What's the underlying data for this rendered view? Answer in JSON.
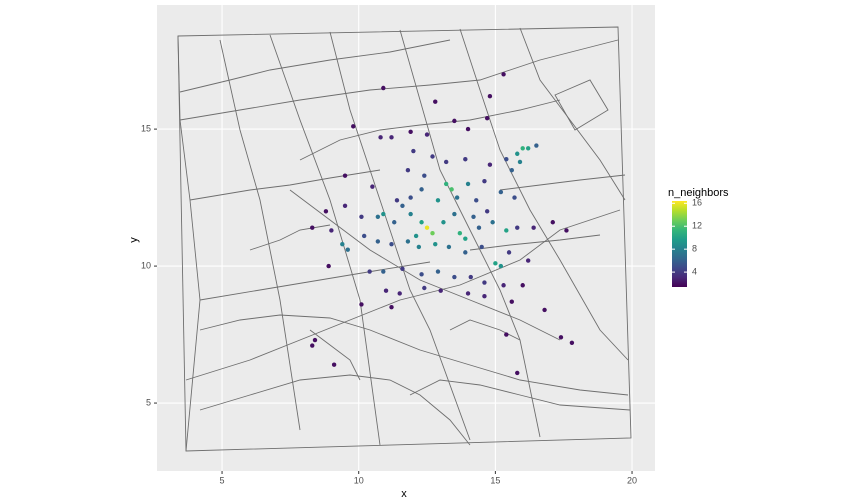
{
  "chart_data": {
    "type": "scatter",
    "x_label": "x",
    "y_label": "y",
    "xlim": [
      2.62,
      20.84
    ],
    "ylim": [
      2.52,
      19.53
    ],
    "xticks": [
      5,
      10,
      15,
      20
    ],
    "yticks": [
      5,
      10,
      15
    ],
    "grid": true,
    "legend_title": "n_neighbors",
    "colorlim": [
      1.4,
      16.4
    ],
    "colorticks": [
      4,
      8,
      12,
      16
    ],
    "colormap": [
      "#440154",
      "#482878",
      "#3e4989",
      "#31688e",
      "#26828e",
      "#1f9e89",
      "#35b779",
      "#6ece58",
      "#b5de2b",
      "#fde725"
    ],
    "x": [
      10.9,
      12.8,
      14.8,
      15.3,
      9.8,
      10.8,
      11.2,
      11.9,
      12.5,
      13.5,
      14.0,
      14.7,
      12.0,
      12.7,
      13.2,
      13.9,
      14.8,
      15.4,
      15.8,
      16.0,
      16.2,
      16.5,
      11.8,
      12.4,
      13.2,
      13.4,
      14.0,
      14.6,
      15.6,
      15.9,
      9.5,
      10.5,
      11.4,
      11.9,
      12.3,
      12.9,
      13.6,
      14.3,
      15.2,
      15.7,
      8.8,
      9.5,
      10.1,
      10.7,
      10.9,
      11.3,
      11.9,
      12.3,
      12.5,
      12.7,
      13.1,
      13.7,
      13.9,
      14.4,
      14.9,
      15.4,
      15.8,
      16.4,
      17.1,
      8.3,
      9.0,
      9.4,
      9.6,
      10.2,
      10.7,
      11.2,
      11.8,
      12.2,
      12.8,
      13.3,
      13.9,
      14.5,
      15.0,
      15.2,
      15.5,
      16.2,
      8.9,
      10.4,
      10.9,
      11.6,
      12.3,
      12.9,
      13.5,
      14.1,
      14.6,
      15.3,
      16.0,
      11.0,
      11.5,
      12.4,
      13.0,
      14.0,
      14.6,
      15.6,
      10.1,
      11.2,
      16.8,
      15.4,
      17.4,
      17.8,
      8.4,
      8.3,
      9.1,
      15.8,
      17.6,
      14.7,
      12.1,
      13.5,
      14.2,
      11.6
    ],
    "y": [
      16.5,
      16.0,
      16.2,
      17.0,
      15.1,
      14.7,
      14.7,
      14.9,
      14.8,
      15.3,
      15.0,
      15.4,
      14.2,
      14.0,
      13.8,
      13.9,
      13.7,
      13.9,
      14.1,
      14.3,
      14.3,
      14.4,
      13.5,
      13.3,
      13.0,
      12.8,
      13.0,
      13.1,
      13.5,
      13.8,
      13.3,
      12.9,
      12.4,
      12.5,
      12.8,
      12.4,
      12.5,
      12.4,
      12.7,
      12.5,
      12.0,
      12.2,
      11.8,
      11.8,
      11.9,
      11.6,
      11.9,
      11.6,
      11.4,
      11.2,
      11.6,
      11.2,
      11.0,
      11.4,
      11.6,
      11.3,
      11.4,
      11.4,
      11.6,
      11.4,
      11.3,
      10.8,
      10.6,
      11.1,
      10.9,
      10.8,
      10.9,
      10.7,
      10.8,
      10.7,
      10.5,
      10.7,
      10.1,
      10.0,
      10.5,
      10.2,
      10.0,
      9.8,
      9.8,
      9.9,
      9.7,
      9.8,
      9.6,
      9.6,
      9.4,
      9.3,
      9.3,
      9.1,
      9.0,
      9.2,
      9.1,
      9.0,
      8.9,
      8.7,
      8.6,
      8.5,
      8.4,
      7.5,
      7.4,
      7.2,
      7.3,
      7.1,
      6.4,
      6.1,
      11.3,
      12.0,
      11.1,
      11.9,
      11.8,
      12.2
    ],
    "n_neighbors": [
      2,
      2,
      2,
      2,
      2,
      3,
      3,
      2,
      3,
      2,
      2,
      2,
      4,
      4,
      4,
      4,
      3,
      5,
      9,
      11,
      10,
      6,
      4,
      5,
      11,
      12,
      8,
      4,
      6,
      8,
      2,
      3,
      4,
      5,
      6,
      9,
      7,
      5,
      6,
      5,
      2,
      3,
      4,
      7,
      9,
      6,
      8,
      10,
      16,
      13,
      9,
      11,
      10,
      6,
      7,
      10,
      4,
      3,
      2,
      2,
      3,
      8,
      7,
      5,
      6,
      5,
      7,
      8,
      9,
      7,
      6,
      5,
      10,
      9,
      4,
      3,
      2,
      4,
      6,
      4,
      5,
      6,
      5,
      4,
      4,
      3,
      2,
      3,
      3,
      4,
      3,
      3,
      3,
      2,
      2,
      2,
      2,
      2,
      2,
      2,
      2,
      2,
      2,
      2,
      2,
      4,
      9,
      7,
      6,
      6
    ]
  }
}
